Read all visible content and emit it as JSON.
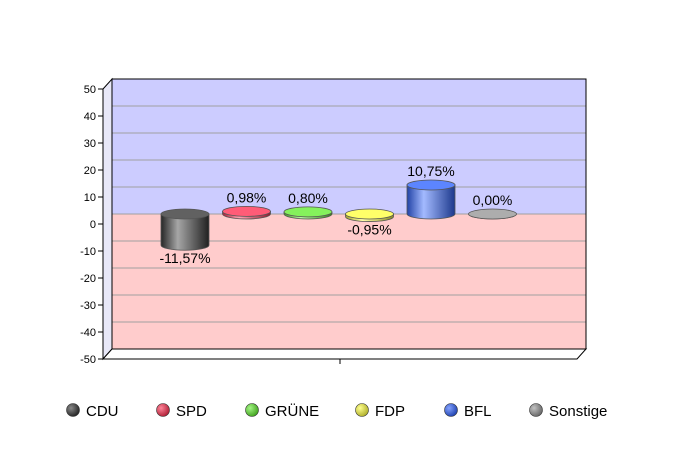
{
  "chart_data": {
    "type": "bar",
    "categories": [
      "CDU",
      "SPD",
      "GRÜNE",
      "FDP",
      "BFL",
      "Sonstige"
    ],
    "values": [
      -11.57,
      0.98,
      0.8,
      -0.95,
      10.75,
      0.0
    ],
    "data_labels": [
      "-11,57%",
      "0,98%",
      "0,80%",
      "-0,95%",
      "10,75%",
      "0,00%"
    ],
    "colors": [
      "#3a3a3a",
      "#ff3355",
      "#66ee33",
      "#ffff44",
      "#3366ff",
      "#999999"
    ],
    "yticks": [
      50,
      40,
      30,
      20,
      10,
      0,
      -10,
      -20,
      -30,
      -40,
      -50
    ],
    "ylim": [
      -50,
      50
    ],
    "positive_region_color": "#ccccff",
    "negative_region_color": "#ffcccc",
    "grid": true,
    "legend": "bottom"
  }
}
